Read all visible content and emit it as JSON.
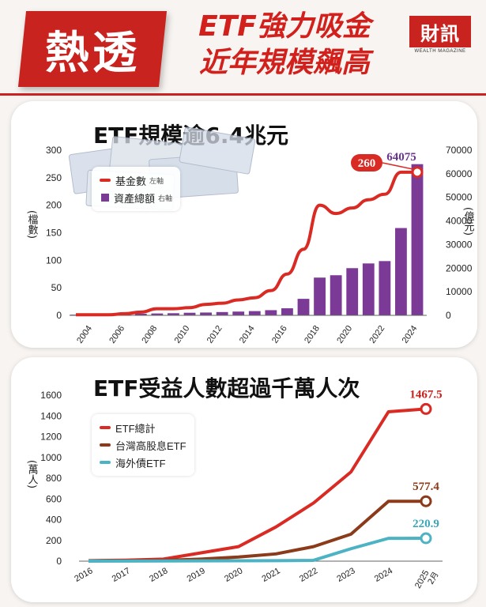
{
  "header": {
    "badge": "熱透",
    "headline_line1": "ETF強力吸金",
    "headline_line2": "近年規模飆高",
    "logo": "財訊",
    "logo_sub": "WEALTH MAGAZINE"
  },
  "colors": {
    "brand_red": "#c8231f",
    "fund_line": "#d92b24",
    "asset_bar": "#7b3a96",
    "taiwan_div": "#8b3a1a",
    "overseas_bond": "#4bb3c4"
  },
  "chart_data": [
    {
      "type": "bar+line",
      "title": "ETF規模逾6.4兆元",
      "x": [
        2003,
        2004,
        2005,
        2006,
        2007,
        2008,
        2009,
        2010,
        2011,
        2012,
        2013,
        2014,
        2015,
        2016,
        2017,
        2018,
        2019,
        2020,
        2021,
        2022,
        2023,
        2024
      ],
      "x_tick_labels": [
        "2004",
        "2006",
        "2008",
        "2010",
        "2012",
        "2014",
        "2016",
        "2018",
        "2020",
        "2022",
        "2024"
      ],
      "series": [
        {
          "name": "基金數",
          "axis_note": "左軸",
          "kind": "line",
          "values": [
            1,
            1,
            1,
            3,
            6,
            12,
            12,
            14,
            20,
            22,
            28,
            32,
            45,
            75,
            120,
            200,
            185,
            195,
            210,
            220,
            260,
            260
          ]
        },
        {
          "name": "資產總額",
          "axis_note": "右軸",
          "kind": "bar",
          "values": [
            300,
            400,
            500,
            600,
            700,
            800,
            900,
            1100,
            1200,
            1400,
            1600,
            1800,
            2200,
            3000,
            7000,
            16000,
            17000,
            20000,
            22000,
            23000,
            37000,
            64075
          ]
        }
      ],
      "ylabel_left": "檔數",
      "ylabel_right": "億元",
      "ylim_left": [
        0,
        300
      ],
      "yticks_left": [
        "0",
        "50",
        "100",
        "150",
        "200",
        "250",
        "300"
      ],
      "ylim_right": [
        0,
        70000
      ],
      "yticks_right": [
        "0",
        "10000",
        "20000",
        "30000",
        "40000",
        "50000",
        "60000",
        "70000"
      ],
      "callouts": {
        "fund_count": "260",
        "asset_total": "64075"
      },
      "legend_position": "top-left"
    },
    {
      "type": "line",
      "title": "ETF受益人數超過千萬人次",
      "x": [
        "2016",
        "2017",
        "2018",
        "2019",
        "2020",
        "2021",
        "2022",
        "2023",
        "2024",
        "2025 2月"
      ],
      "x_tick_labels": [
        "2016",
        "2017",
        "2018",
        "2019",
        "2020",
        "2021",
        "2022",
        "2023",
        "2024",
        "2025",
        "2月"
      ],
      "series": [
        {
          "name": "ETF總計",
          "values": [
            5,
            10,
            20,
            80,
            140,
            330,
            560,
            860,
            1440,
            1467.5
          ],
          "end_label": "1467.5"
        },
        {
          "name": "台灣高股息ETF",
          "values": [
            2,
            4,
            8,
            20,
            40,
            70,
            140,
            260,
            577,
            577.4
          ],
          "end_label": "577.4"
        },
        {
          "name": "海外債ETF",
          "values": [
            1,
            1,
            2,
            3,
            4,
            5,
            8,
            120,
            220,
            220.9
          ],
          "end_label": "220.9"
        }
      ],
      "ylabel": "萬人",
      "ylim": [
        0,
        1600
      ],
      "yticks": [
        "0",
        "200",
        "400",
        "600",
        "800",
        "1000",
        "1200",
        "1400",
        "1600"
      ],
      "legend_position": "top-left"
    }
  ]
}
